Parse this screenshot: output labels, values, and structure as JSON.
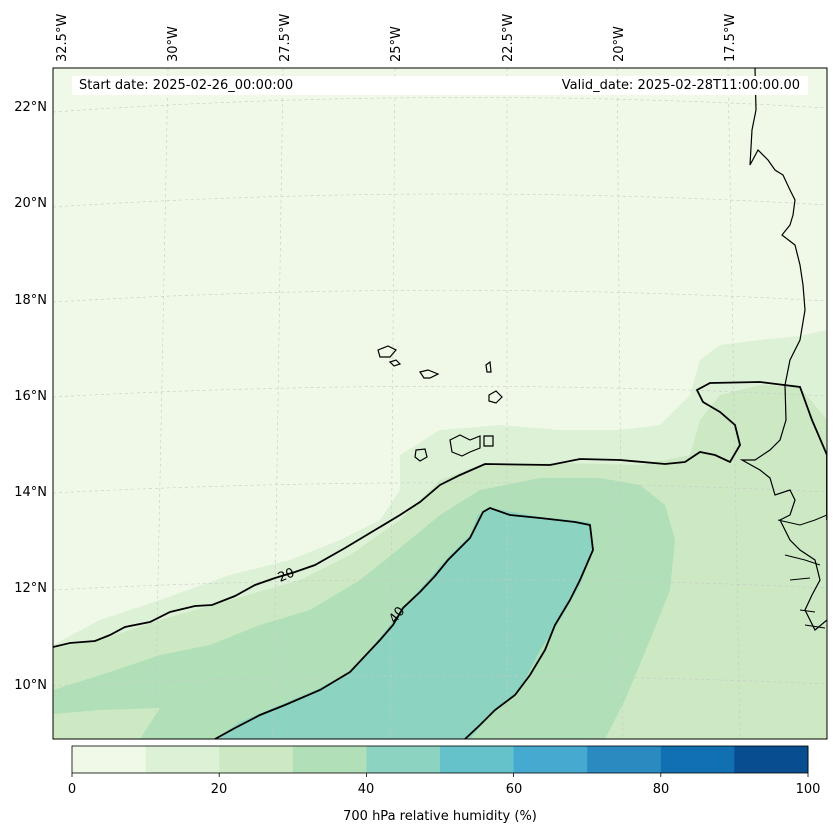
{
  "header": {
    "start_date": "Start date: 2025-02-26_00:00:00",
    "valid_date": "Valid_date: 2025-02-28T11:00:00.00"
  },
  "map": {
    "lon_labels": [
      "32.5°W",
      "30°W",
      "27.5°W",
      "25°W",
      "22.5°W",
      "20°W",
      "17.5°W"
    ],
    "lat_labels": [
      "22°N",
      "20°N",
      "18°N",
      "16°N",
      "14°N",
      "12°N",
      "10°N"
    ],
    "contour_labels": [
      "20",
      "40"
    ]
  },
  "colorbar": {
    "label": "700 hPa relative humidity (%)",
    "ticks": [
      "0",
      "20",
      "40",
      "60",
      "80",
      "100"
    ],
    "colors": [
      "#f0f9e8",
      "#ddf1d7",
      "#cce9c4",
      "#b0dfb8",
      "#8dd3c1",
      "#66c2ca",
      "#45a9d0",
      "#2b8bc0",
      "#1070b1",
      "#084d8f"
    ]
  }
}
